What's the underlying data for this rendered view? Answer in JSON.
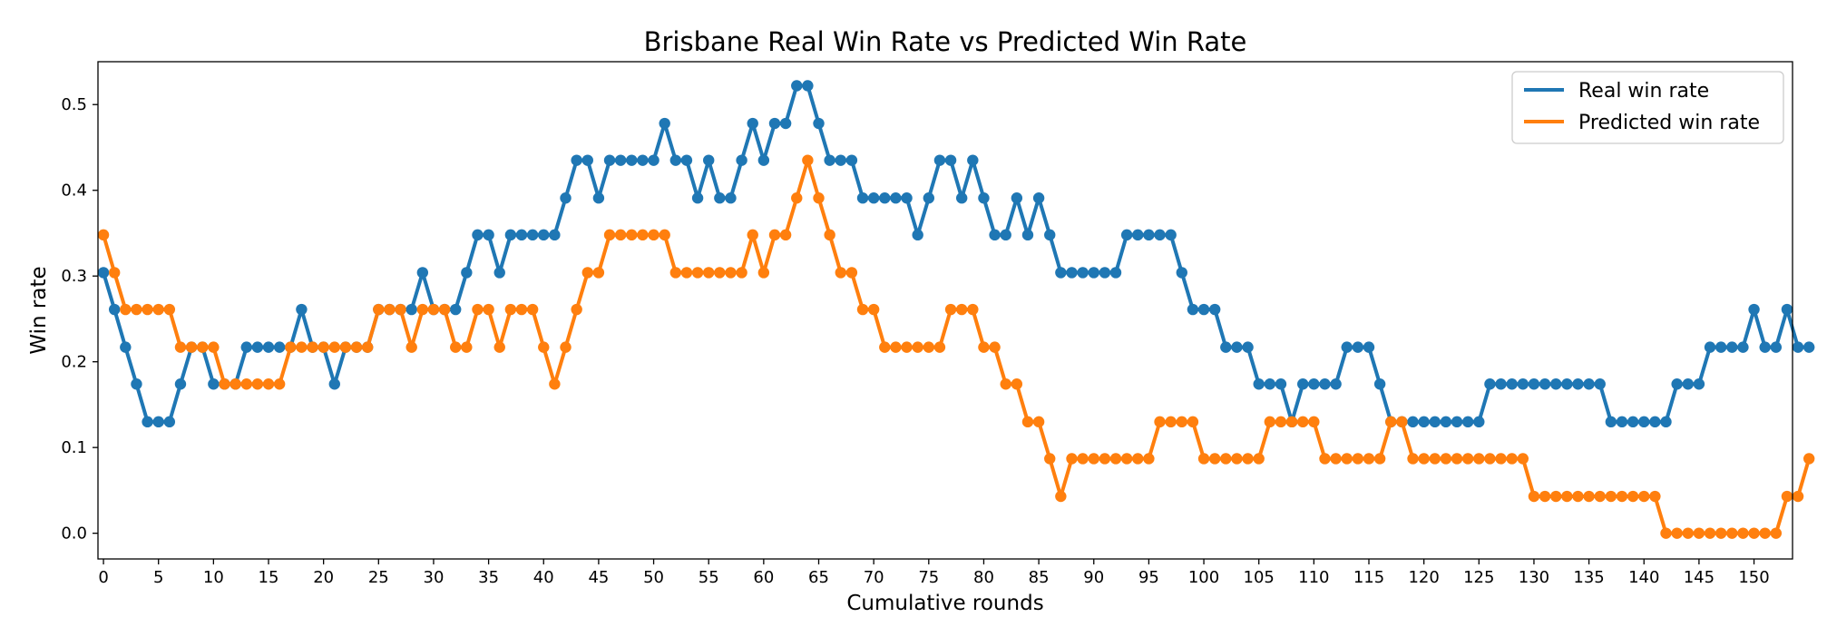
{
  "chart_data": {
    "type": "line",
    "title": "Brisbane Real Win Rate vs Predicted Win Rate",
    "xlabel": "Cumulative rounds",
    "ylabel": "Win rate",
    "xlim": [
      -0.5,
      153.5
    ],
    "ylim": [
      -0.03,
      0.55
    ],
    "xticks": [
      0,
      5,
      10,
      15,
      20,
      25,
      30,
      35,
      40,
      45,
      50,
      55,
      60,
      65,
      70,
      75,
      80,
      85,
      90,
      95,
      100,
      105,
      110,
      115,
      120,
      125,
      130,
      135,
      140,
      145,
      150
    ],
    "yticks": [
      0.0,
      0.1,
      0.2,
      0.3,
      0.4,
      0.5
    ],
    "ytick_labels": [
      "0.0",
      "0.1",
      "0.2",
      "0.3",
      "0.4",
      "0.5"
    ],
    "grid": false,
    "legend_position": "top-right",
    "markers": true,
    "series": [
      {
        "name": "Real win rate",
        "color": "#1f77b4",
        "values": [
          0.304,
          0.261,
          0.217,
          0.174,
          0.13,
          0.13,
          0.13,
          0.174,
          0.217,
          0.217,
          0.174,
          0.174,
          0.174,
          0.217,
          0.217,
          0.217,
          0.217,
          0.217,
          0.261,
          0.217,
          0.217,
          0.174,
          0.217,
          0.217,
          0.217,
          0.261,
          0.261,
          0.261,
          0.261,
          0.304,
          0.261,
          0.261,
          0.261,
          0.304,
          0.348,
          0.348,
          0.304,
          0.348,
          0.348,
          0.348,
          0.348,
          0.348,
          0.391,
          0.435,
          0.435,
          0.391,
          0.435,
          0.435,
          0.435,
          0.435,
          0.435,
          0.478,
          0.435,
          0.435,
          0.391,
          0.435,
          0.391,
          0.391,
          0.435,
          0.478,
          0.435,
          0.478,
          0.478,
          0.522,
          0.522,
          0.478,
          0.435,
          0.435,
          0.435,
          0.391,
          0.391,
          0.391,
          0.391,
          0.391,
          0.348,
          0.391,
          0.435,
          0.435,
          0.391,
          0.435,
          0.391,
          0.348,
          0.348,
          0.391,
          0.348,
          0.391,
          0.348,
          0.304,
          0.304,
          0.304,
          0.304,
          0.304,
          0.304,
          0.348,
          0.348,
          0.348,
          0.348,
          0.348,
          0.304,
          0.261,
          0.261,
          0.261,
          0.217,
          0.217,
          0.217,
          0.174,
          0.174,
          0.174,
          0.13,
          0.174,
          0.174,
          0.174,
          0.174,
          0.217,
          0.217,
          0.217,
          0.174,
          0.13,
          0.13,
          0.13,
          0.13,
          0.13,
          0.13,
          0.13,
          0.13,
          0.13,
          0.174,
          0.174,
          0.174,
          0.174,
          0.174,
          0.174,
          0.174,
          0.174,
          0.174,
          0.174,
          0.174,
          0.13,
          0.13,
          0.13,
          0.13,
          0.13,
          0.13,
          0.174,
          0.174,
          0.174,
          0.217,
          0.217,
          0.217,
          0.217,
          0.261,
          0.217,
          0.217,
          0.261,
          0.217,
          0.217
        ]
      },
      {
        "name": "Predicted win rate",
        "color": "#ff7f0e",
        "values": [
          0.348,
          0.304,
          0.261,
          0.261,
          0.261,
          0.261,
          0.261,
          0.217,
          0.217,
          0.217,
          0.217,
          0.174,
          0.174,
          0.174,
          0.174,
          0.174,
          0.174,
          0.217,
          0.217,
          0.217,
          0.217,
          0.217,
          0.217,
          0.217,
          0.217,
          0.261,
          0.261,
          0.261,
          0.217,
          0.261,
          0.261,
          0.261,
          0.217,
          0.217,
          0.261,
          0.261,
          0.217,
          0.261,
          0.261,
          0.261,
          0.217,
          0.174,
          0.217,
          0.261,
          0.304,
          0.304,
          0.348,
          0.348,
          0.348,
          0.348,
          0.348,
          0.348,
          0.304,
          0.304,
          0.304,
          0.304,
          0.304,
          0.304,
          0.304,
          0.348,
          0.304,
          0.348,
          0.348,
          0.391,
          0.435,
          0.391,
          0.348,
          0.304,
          0.304,
          0.261,
          0.261,
          0.217,
          0.217,
          0.217,
          0.217,
          0.217,
          0.217,
          0.261,
          0.261,
          0.261,
          0.217,
          0.217,
          0.174,
          0.174,
          0.13,
          0.13,
          0.087,
          0.043,
          0.087,
          0.087,
          0.087,
          0.087,
          0.087,
          0.087,
          0.087,
          0.087,
          0.13,
          0.13,
          0.13,
          0.13,
          0.087,
          0.087,
          0.087,
          0.087,
          0.087,
          0.087,
          0.13,
          0.13,
          0.13,
          0.13,
          0.13,
          0.087,
          0.087,
          0.087,
          0.087,
          0.087,
          0.087,
          0.13,
          0.13,
          0.087,
          0.087,
          0.087,
          0.087,
          0.087,
          0.087,
          0.087,
          0.087,
          0.087,
          0.087,
          0.087,
          0.043,
          0.043,
          0.043,
          0.043,
          0.043,
          0.043,
          0.043,
          0.043,
          0.043,
          0.043,
          0.043,
          0.043,
          0.0,
          0.0,
          0.0,
          0.0,
          0.0,
          0.0,
          0.0,
          0.0,
          0.0,
          0.0,
          0.0,
          0.043,
          0.043,
          0.087
        ]
      }
    ]
  }
}
